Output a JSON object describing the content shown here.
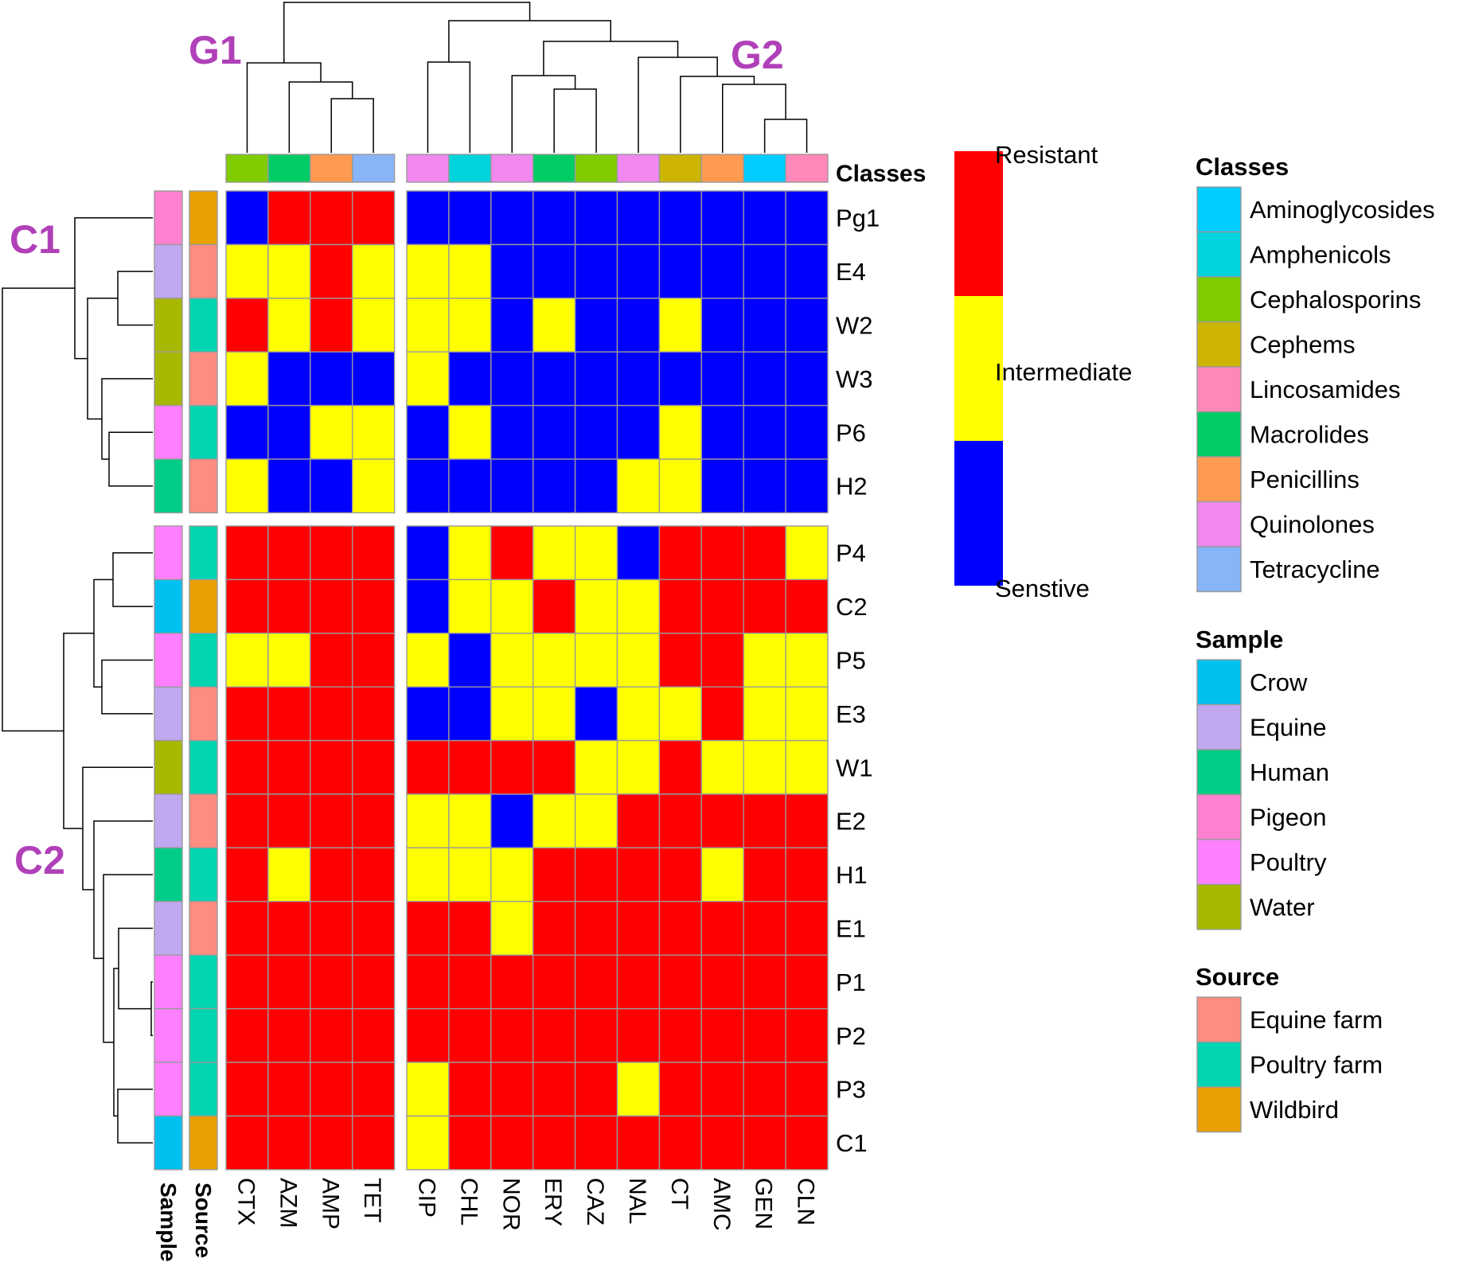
{
  "chart_data": {
    "type": "heatmap",
    "title": "",
    "columns": [
      "CTX",
      "AZM",
      "AMP",
      "TET",
      "CIP",
      "CHL",
      "NOR",
      "ERY",
      "CAZ",
      "NAL",
      "CT",
      "AMC",
      "GEN",
      "CLN"
    ],
    "rows": [
      "Pg1",
      "E4",
      "W2",
      "W3",
      "P6",
      "H2",
      "P4",
      "C2",
      "P5",
      "E3",
      "W1",
      "E2",
      "H1",
      "E1",
      "P1",
      "P2",
      "P3",
      "C1"
    ],
    "column_groups": {
      "G1": [
        "CTX",
        "AZM",
        "AMP",
        "TET"
      ],
      "G2": [
        "CIP",
        "CHL",
        "NOR",
        "ERY",
        "CAZ",
        "NAL",
        "CT",
        "AMC",
        "GEN",
        "CLN"
      ]
    },
    "row_clusters": {
      "C1": [
        "Pg1",
        "E4",
        "W2",
        "W3",
        "P6",
        "H2"
      ],
      "C2": [
        "P4",
        "C2",
        "P5",
        "E3",
        "W1",
        "E2",
        "H1",
        "E1",
        "P1",
        "P2",
        "P3",
        "C1"
      ]
    },
    "group_labels": {
      "col1": "G1",
      "col2": "G2",
      "row1": "C1",
      "row2": "C2"
    },
    "values": [
      [
        "S",
        "R",
        "R",
        "R",
        "S",
        "S",
        "S",
        "S",
        "S",
        "S",
        "S",
        "S",
        "S",
        "S"
      ],
      [
        "I",
        "I",
        "R",
        "I",
        "I",
        "I",
        "S",
        "S",
        "S",
        "S",
        "S",
        "S",
        "S",
        "S"
      ],
      [
        "R",
        "I",
        "R",
        "I",
        "I",
        "I",
        "S",
        "I",
        "S",
        "S",
        "I",
        "S",
        "S",
        "S"
      ],
      [
        "I",
        "S",
        "S",
        "S",
        "I",
        "S",
        "S",
        "S",
        "S",
        "S",
        "S",
        "S",
        "S",
        "S"
      ],
      [
        "S",
        "S",
        "I",
        "I",
        "S",
        "I",
        "S",
        "S",
        "S",
        "S",
        "I",
        "S",
        "S",
        "S"
      ],
      [
        "I",
        "S",
        "S",
        "I",
        "S",
        "S",
        "S",
        "S",
        "S",
        "I",
        "I",
        "S",
        "S",
        "S"
      ],
      [
        "R",
        "R",
        "R",
        "R",
        "S",
        "I",
        "R",
        "I",
        "I",
        "S",
        "R",
        "R",
        "R",
        "I"
      ],
      [
        "R",
        "R",
        "R",
        "R",
        "S",
        "I",
        "I",
        "R",
        "I",
        "I",
        "R",
        "R",
        "R",
        "R"
      ],
      [
        "I",
        "I",
        "R",
        "R",
        "I",
        "S",
        "I",
        "I",
        "I",
        "I",
        "R",
        "R",
        "I",
        "I"
      ],
      [
        "R",
        "R",
        "R",
        "R",
        "S",
        "S",
        "I",
        "I",
        "S",
        "I",
        "I",
        "R",
        "I",
        "I"
      ],
      [
        "R",
        "R",
        "R",
        "R",
        "R",
        "R",
        "R",
        "R",
        "I",
        "I",
        "R",
        "I",
        "I",
        "I"
      ],
      [
        "R",
        "R",
        "R",
        "R",
        "I",
        "I",
        "S",
        "I",
        "I",
        "R",
        "R",
        "R",
        "R",
        "R"
      ],
      [
        "R",
        "I",
        "R",
        "R",
        "I",
        "I",
        "I",
        "R",
        "R",
        "R",
        "R",
        "I",
        "R",
        "R"
      ],
      [
        "R",
        "R",
        "R",
        "R",
        "R",
        "R",
        "I",
        "R",
        "R",
        "R",
        "R",
        "R",
        "R",
        "R"
      ],
      [
        "R",
        "R",
        "R",
        "R",
        "R",
        "R",
        "R",
        "R",
        "R",
        "R",
        "R",
        "R",
        "R",
        "R"
      ],
      [
        "R",
        "R",
        "R",
        "R",
        "R",
        "R",
        "R",
        "R",
        "R",
        "R",
        "R",
        "R",
        "R",
        "R"
      ],
      [
        "R",
        "R",
        "R",
        "R",
        "I",
        "R",
        "R",
        "R",
        "R",
        "I",
        "R",
        "R",
        "R",
        "R"
      ],
      [
        "R",
        "R",
        "R",
        "R",
        "I",
        "R",
        "R",
        "R",
        "R",
        "R",
        "R",
        "R",
        "R",
        "R"
      ]
    ],
    "value_colors": {
      "R": "#ff0000",
      "I": "#ffff00",
      "S": "#0000ff"
    },
    "colorbar": {
      "top": "Resistant",
      "middle": "Intermediate",
      "bottom": "Senstive"
    },
    "column_classes": [
      "Cephalosporins",
      "Macrolides",
      "Penicillins",
      "Tetracycline",
      "Quinolones",
      "Amphenicols",
      "Quinolones",
      "Macrolides",
      "Cephalosporins",
      "Quinolones",
      "Cephems",
      "Penicillins",
      "Aminoglycosides",
      "Lincosamides"
    ],
    "row_sample": [
      "Pigeon",
      "Equine",
      "Water",
      "Water",
      "Poultry",
      "Human",
      "Poultry",
      "Crow",
      "Poultry",
      "Equine",
      "Water",
      "Equine",
      "Human",
      "Equine",
      "Poultry",
      "Poultry",
      "Poultry",
      "Crow"
    ],
    "row_source": [
      "Wildbird",
      "Equine farm",
      "Poultry farm",
      "Equine farm",
      "Poultry farm",
      "Equine farm",
      "Poultry farm",
      "Wildbird",
      "Poultry farm",
      "Equine farm",
      "Poultry farm",
      "Equine farm",
      "Poultry farm",
      "Equine farm",
      "Poultry farm",
      "Poultry farm",
      "Poultry farm",
      "Wildbird"
    ],
    "annotation_labels": {
      "classes": "Classes",
      "sample": "Sample",
      "source": "Source"
    },
    "legends": {
      "classes": {
        "title": "Classes",
        "items": [
          {
            "label": "Aminoglycosides",
            "color": "#00ccff"
          },
          {
            "label": "Amphenicols",
            "color": "#00d3dc"
          },
          {
            "label": "Cephalosporins",
            "color": "#7fcc00"
          },
          {
            "label": "Cephems",
            "color": "#ccb400"
          },
          {
            "label": "Lincosamides",
            "color": "#ff88b8"
          },
          {
            "label": "Macrolides",
            "color": "#00cc66"
          },
          {
            "label": "Penicillins",
            "color": "#ff9a50"
          },
          {
            "label": "Quinolones",
            "color": "#f088f0"
          },
          {
            "label": "Tetracycline",
            "color": "#88b4f8"
          }
        ]
      },
      "sample": {
        "title": "Sample",
        "items": [
          {
            "label": "Crow",
            "color": "#00c0f0"
          },
          {
            "label": "Equine",
            "color": "#c0a8f0"
          },
          {
            "label": "Human",
            "color": "#00cc88"
          },
          {
            "label": "Pigeon",
            "color": "#ff80d0"
          },
          {
            "label": "Poultry",
            "color": "#ff80ff"
          },
          {
            "label": "Water",
            "color": "#a8b800"
          }
        ]
      },
      "source": {
        "title": "Source",
        "items": [
          {
            "label": "Equine farm",
            "color": "#ff8c80"
          },
          {
            "label": "Poultry farm",
            "color": "#00d4b0"
          },
          {
            "label": "Wildbird",
            "color": "#e8a000"
          }
        ]
      }
    }
  }
}
